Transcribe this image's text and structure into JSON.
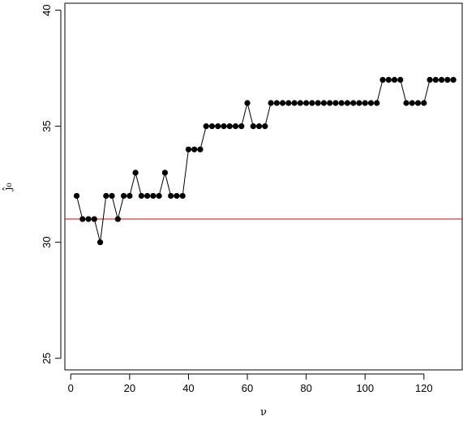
{
  "chart_data": {
    "type": "line",
    "xlabel": "ν",
    "ylabel": "ĵ₀",
    "xlim": [
      -2,
      133
    ],
    "ylim": [
      24.5,
      40.3
    ],
    "x_ticks": [
      0,
      20,
      40,
      60,
      80,
      100,
      120
    ],
    "y_ticks": [
      25,
      30,
      35,
      40
    ],
    "x_tick_labels": [
      "0",
      "20",
      "40",
      "60",
      "80",
      "100",
      "120"
    ],
    "y_tick_labels": [
      "25",
      "30",
      "35",
      "40"
    ],
    "grid": false,
    "legend": "none",
    "series": [
      {
        "color": "#000000",
        "marker": "filled-circle",
        "x": [
          2,
          4,
          6,
          8,
          10,
          12,
          14,
          16,
          18,
          20,
          22,
          24,
          26,
          28,
          30,
          32,
          34,
          36,
          38,
          40,
          42,
          44,
          46,
          48,
          50,
          52,
          54,
          56,
          58,
          60,
          62,
          64,
          66,
          68,
          70,
          72,
          74,
          76,
          78,
          80,
          82,
          84,
          86,
          88,
          90,
          92,
          94,
          96,
          98,
          100,
          102,
          104,
          106,
          108,
          110,
          112,
          114,
          116,
          118,
          120,
          122,
          124,
          126,
          128,
          130
        ],
        "y": [
          32,
          31,
          31,
          31,
          30,
          32,
          32,
          31,
          32,
          32,
          33,
          32,
          32,
          32,
          32,
          33,
          32,
          32,
          32,
          34,
          34,
          34,
          35,
          35,
          35,
          35,
          35,
          35,
          35,
          36,
          35,
          35,
          35,
          36,
          36,
          36,
          36,
          36,
          36,
          36,
          36,
          36,
          36,
          36,
          36,
          36,
          36,
          36,
          36,
          36,
          36,
          36,
          37,
          37,
          37,
          37,
          36,
          36,
          36,
          36,
          37,
          37,
          37,
          37,
          37
        ]
      }
    ],
    "reference_lines": [
      {
        "orientation": "horizontal",
        "y": 31,
        "color": "#dd0000"
      }
    ]
  }
}
